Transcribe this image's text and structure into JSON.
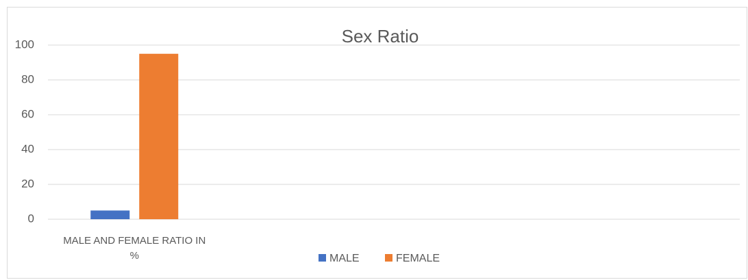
{
  "chart_data": {
    "type": "bar",
    "title": "Sex Ratio",
    "categories": [
      "MALE AND FEMALE RATIO IN %",
      null,
      null,
      null
    ],
    "series": [
      {
        "name": "MALE",
        "color": "#4472c4",
        "values": [
          5,
          null,
          null,
          null
        ]
      },
      {
        "name": "FEMALE",
        "color": "#ed7d31",
        "values": [
          95,
          null,
          null,
          null
        ]
      }
    ],
    "ylim": [
      0,
      100
    ],
    "yticks": [
      0,
      20,
      40,
      60,
      80,
      100
    ],
    "grid": true,
    "legend": "bottom"
  }
}
